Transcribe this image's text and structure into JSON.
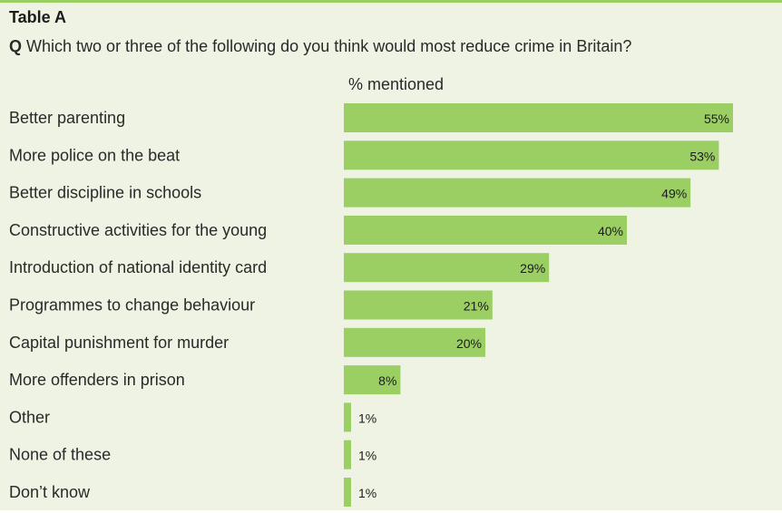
{
  "table_title": "Table A",
  "question_prefix": "Q",
  "question_text": "Which two or three of the following do you think would most reduce crime in Britain?",
  "unit_label": "% mentioned",
  "colors": {
    "bar": "#9bcf64",
    "panel": "#eef3e3",
    "accent": "#9ccf63"
  },
  "chart_data": {
    "type": "bar",
    "orientation": "horizontal",
    "categories": [
      "Better parenting",
      "More police on the beat",
      "Better discipline in schools",
      "Constructive activities for the young",
      "Introduction of national identity card",
      "Programmes to change behaviour",
      "Capital punishment for murder",
      "More offenders in prison",
      "Other",
      "None of these",
      "Don’t know"
    ],
    "values": [
      55,
      53,
      49,
      40,
      29,
      21,
      20,
      8,
      1,
      1,
      1
    ],
    "value_labels": [
      "55%",
      "53%",
      "49%",
      "40%",
      "29%",
      "21%",
      "20%",
      "8%",
      "1%",
      "1%",
      "1%"
    ],
    "xlabel": "% mentioned",
    "grid": false,
    "legend": false
  }
}
